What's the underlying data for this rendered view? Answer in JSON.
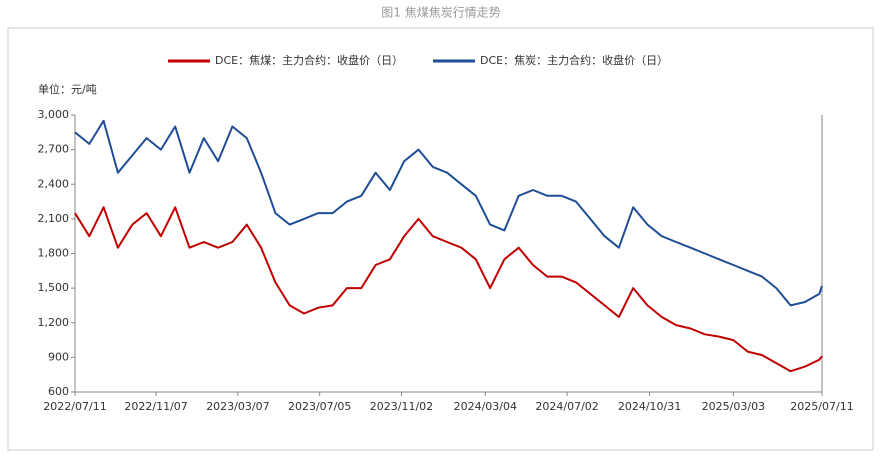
{
  "chart_data": {
    "type": "line",
    "title": "图1 焦煤焦炭行情走势",
    "unit_label": "单位：元/吨",
    "x": [
      "2022/07/11",
      "2022/08/01",
      "2022/08/22",
      "2022/09/12",
      "2022/10/03",
      "2022/10/24",
      "2022/11/14",
      "2022/12/05",
      "2022/12/26",
      "2023/01/16",
      "2023/02/06",
      "2023/02/27",
      "2023/03/20",
      "2023/04/10",
      "2023/05/01",
      "2023/05/22",
      "2023/06/12",
      "2023/07/03",
      "2023/07/24",
      "2023/08/14",
      "2023/09/04",
      "2023/09/25",
      "2023/10/16",
      "2023/11/06",
      "2023/11/27",
      "2023/12/18",
      "2024/01/08",
      "2024/01/29",
      "2024/02/19",
      "2024/03/11",
      "2024/04/01",
      "2024/04/22",
      "2024/05/13",
      "2024/06/03",
      "2024/06/24",
      "2024/07/15",
      "2024/08/05",
      "2024/08/26",
      "2024/09/16",
      "2024/10/07",
      "2024/10/28",
      "2024/11/18",
      "2024/12/09",
      "2024/12/30",
      "2025/01/20",
      "2025/02/10",
      "2025/03/03",
      "2025/03/24",
      "2025/04/14",
      "2025/05/05",
      "2025/05/26",
      "2025/06/16",
      "2025/07/07",
      "2025/07/11"
    ],
    "series": [
      {
        "name": "DCE：焦煤：主力合约：收盘价（日）",
        "color": "#c00000",
        "values": [
          2150,
          1950,
          2200,
          1850,
          2050,
          2150,
          1950,
          2200,
          1850,
          1900,
          1850,
          1900,
          2050,
          1850,
          1550,
          1350,
          1280,
          1330,
          1350,
          1500,
          1500,
          1700,
          1750,
          1950,
          2100,
          1950,
          1900,
          1850,
          1750,
          1500,
          1750,
          1850,
          1700,
          1600,
          1600,
          1550,
          1450,
          1350,
          1250,
          1500,
          1350,
          1250,
          1180,
          1150,
          1100,
          1080,
          1050,
          950,
          920,
          850,
          780,
          820,
          880,
          910
        ]
      },
      {
        "name": "DCE：焦炭：主力合约：收盘价（日）",
        "color": "#1f4e96",
        "values": [
          2850,
          2750,
          2950,
          2500,
          2650,
          2800,
          2700,
          2900,
          2500,
          2800,
          2600,
          2900,
          2800,
          2500,
          2150,
          2050,
          2100,
          2150,
          2150,
          2250,
          2300,
          2500,
          2350,
          2600,
          2700,
          2550,
          2500,
          2400,
          2300,
          2050,
          2000,
          2300,
          2350,
          2300,
          2300,
          2250,
          2100,
          1950,
          1850,
          2200,
          2050,
          1950,
          1900,
          1850,
          1800,
          1750,
          1700,
          1650,
          1600,
          1500,
          1350,
          1380,
          1450,
          1520
        ]
      }
    ],
    "xlim": [
      "2022/07/11",
      "2025/07/11"
    ],
    "xticks": [
      "2022/07/11",
      "2022/11/07",
      "2023/03/07",
      "2023/07/05",
      "2023/11/02",
      "2024/03/04",
      "2024/07/02",
      "2024/10/31",
      "2025/03/03",
      "2025/07/11"
    ],
    "ylim": [
      600,
      3000
    ],
    "yticks": [
      600,
      900,
      {
        "value": 1200,
        "label": "1,200"
      },
      {
        "value": 1500,
        "label": "1,500"
      },
      {
        "value": 1800,
        "label": "1,800"
      },
      {
        "value": 2100,
        "label": "2,100"
      },
      {
        "value": 2400,
        "label": "2,400"
      },
      {
        "value": 2700,
        "label": "2,700"
      },
      {
        "value": 3000,
        "label": "3,000"
      }
    ],
    "grid": false,
    "legend": "top"
  }
}
